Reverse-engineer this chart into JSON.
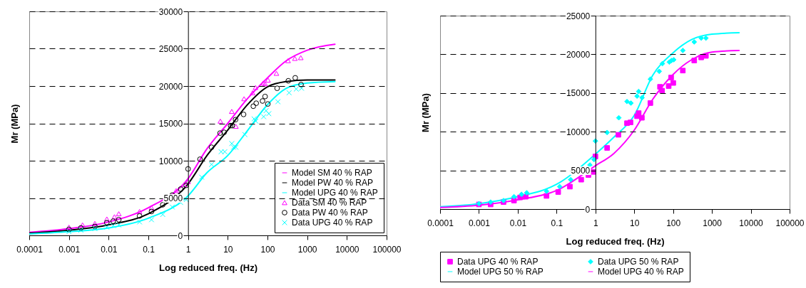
{
  "chart_data": [
    {
      "type": "line",
      "xlabel": "Log reduced freq. (Hz)",
      "ylabel": "Mr (MPa)",
      "log": "x",
      "xlim": [
        0.0001,
        100000
      ],
      "xticks": [
        0.0001,
        0.001,
        0.01,
        0.1,
        1,
        10,
        100,
        1000,
        10000,
        100000
      ],
      "ylim": [
        0,
        30000
      ],
      "yticks": [
        0,
        5000,
        10000,
        15000,
        20000,
        25000,
        30000
      ],
      "grid": "y",
      "legend": "bottom right",
      "series": [
        {
          "name": "Model SM 40 % RAP",
          "type": "line",
          "marker": "none",
          "color": "#ff00ff",
          "x": [
            0.0001,
            0.001,
            0.01,
            0.1,
            1,
            3,
            10,
            30,
            100,
            300,
            1000,
            5000
          ],
          "values": [
            400,
            900,
            1800,
            3700,
            7600,
            11600,
            15000,
            18200,
            21100,
            23400,
            24800,
            25600
          ]
        },
        {
          "name": "Model PW 40 % RAP",
          "type": "line",
          "marker": "none",
          "color": "#000000",
          "x": [
            0.0001,
            0.001,
            0.01,
            0.1,
            1,
            3,
            10,
            30,
            100,
            300,
            1000,
            5000
          ],
          "values": [
            300,
            700,
            1400,
            2900,
            6900,
            10700,
            14100,
            17400,
            19900,
            20600,
            20800,
            20800
          ]
        },
        {
          "name": "Model UPG 40 % RAP",
          "type": "line",
          "marker": "none",
          "color": "#00ffff",
          "x": [
            0.0001,
            0.001,
            0.01,
            0.1,
            1,
            3,
            10,
            30,
            100,
            300,
            1000,
            5000
          ],
          "values": [
            200,
            500,
            1000,
            2300,
            5300,
            8400,
            10700,
            13900,
            17500,
            19700,
            20400,
            20600
          ]
        },
        {
          "name": "Data SM 40 % RAP",
          "type": "scatter",
          "marker": "triangle",
          "color": "#ff00ff",
          "x": [
            0.001,
            0.0022,
            0.0045,
            0.009,
            0.014,
            0.018,
            0.06,
            0.12,
            0.5,
            0.8,
            1,
            6.5,
            12.6,
            16,
            25.7,
            42,
            50,
            78,
            87,
            103,
            168,
            330,
            490,
            690
          ],
          "values": [
            1100,
            1400,
            1600,
            2200,
            2500,
            2900,
            3200,
            3700,
            6000,
            6800,
            7200,
            15300,
            16600,
            14600,
            18300,
            19100,
            19800,
            20400,
            20300,
            20800,
            21700,
            23400,
            23700,
            23800
          ]
        },
        {
          "name": "Data PW 40 % RAP",
          "type": "scatter",
          "marker": "circle",
          "color": "#000000",
          "x": [
            0.001,
            0.002,
            0.0045,
            0.009,
            0.013,
            0.018,
            0.06,
            0.12,
            0.23,
            0.4,
            0.65,
            0.9,
            1,
            2,
            3.9,
            6.4,
            8.1,
            11.8,
            13,
            15.7,
            25,
            44,
            52,
            75,
            87,
            102,
            175,
            335,
            500,
            700
          ],
          "values": [
            800,
            1000,
            1200,
            1700,
            1900,
            2100,
            2600,
            3200,
            4100,
            5400,
            6200,
            6700,
            8900,
            10200,
            11800,
            13700,
            13800,
            14700,
            14700,
            15500,
            16200,
            17300,
            17700,
            18000,
            18600,
            17600,
            19700,
            20700,
            21100,
            20200
          ]
        },
        {
          "name": "Data UPG  40 % RAP",
          "type": "scatter",
          "marker": "cross",
          "color": "#00ffff",
          "x": [
            0.001,
            0.002,
            0.0045,
            0.009,
            0.013,
            0.018,
            0.06,
            0.12,
            0.23,
            0.4,
            0.65,
            0.9,
            2.2,
            3.9,
            6.8,
            8.4,
            12.6,
            14,
            16,
            27,
            46,
            51,
            80,
            92,
            108,
            183,
            350,
            530,
            720
          ],
          "values": [
            500,
            700,
            900,
            1100,
            1300,
            1400,
            1800,
            2100,
            2800,
            3800,
            4400,
            4800,
            7800,
            9500,
            11200,
            11200,
            12300,
            11800,
            11800,
            13500,
            15600,
            15300,
            15900,
            16700,
            16300,
            17900,
            19100,
            19600,
            19700
          ]
        }
      ]
    },
    {
      "type": "line",
      "xlabel": "Log reduced freq. (Hz)",
      "ylabel": "Mr (MPa)",
      "log": "x",
      "xlim": [
        0.0001,
        100000
      ],
      "xticks": [
        0.0001,
        0.001,
        0.01,
        0.1,
        1,
        10,
        100,
        1000,
        10000,
        100000
      ],
      "ylim": [
        0,
        25000
      ],
      "yticks": [
        0,
        5000,
        10000,
        15000,
        20000,
        25000
      ],
      "grid": "y",
      "legend": "bottom",
      "series": [
        {
          "name": "Data UPG 40 % RAP",
          "type": "scatter",
          "marker": "square",
          "color": "#ff00ff",
          "x": [
            0.001,
            0.002,
            0.0043,
            0.008,
            0.0115,
            0.016,
            0.055,
            0.11,
            0.22,
            0.43,
            0.66,
            0.88,
            1,
            2,
            3.9,
            6.5,
            8,
            11.8,
            13,
            15.7,
            26,
            46,
            52,
            77,
            89,
            101,
            178,
            350,
            530,
            700
          ],
          "values": [
            600,
            600,
            900,
            1100,
            1500,
            1600,
            1700,
            2200,
            2900,
            3800,
            4400,
            4800,
            6800,
            7900,
            9600,
            11100,
            11200,
            12000,
            12400,
            11800,
            13700,
            15800,
            15300,
            15900,
            17000,
            16300,
            17900,
            19200,
            19600,
            19800
          ]
        },
        {
          "name": "Data UPG 50 % RAP",
          "type": "scatter",
          "marker": "diamond",
          "color": "#00ffff",
          "x": [
            0.001,
            0.002,
            0.0043,
            0.008,
            0.0125,
            0.017,
            0.055,
            0.12,
            0.23,
            0.72,
            0.92,
            1,
            2,
            4,
            6.5,
            8.2,
            11.8,
            13,
            15.9,
            26,
            44,
            53,
            80,
            91,
            104,
            178,
            350,
            530,
            700
          ],
          "values": [
            700,
            900,
            1100,
            1600,
            1900,
            2100,
            2300,
            2900,
            3800,
            5700,
            6400,
            8800,
            9900,
            11800,
            13900,
            13700,
            14600,
            15200,
            14400,
            16800,
            17800,
            18800,
            19000,
            19200,
            19300,
            20500,
            21600,
            22100,
            22100
          ]
        },
        {
          "name": "Model UPG 50 % RAP",
          "type": "line",
          "marker": "none",
          "color": "#00ffff",
          "x": [
            0.0001,
            0.001,
            0.01,
            0.1,
            1,
            3,
            10,
            30,
            100,
            300,
            1000,
            5000
          ],
          "values": [
            300,
            700,
            1600,
            3200,
            7100,
            9300,
            12100,
            17300,
            20200,
            21900,
            22600,
            22800
          ]
        },
        {
          "name": "Model UPG 40 % RAP",
          "type": "line",
          "marker": "none",
          "color": "#ff00ff",
          "x": [
            0.0001,
            0.001,
            0.01,
            0.1,
            1,
            3,
            10,
            30,
            100,
            300,
            1000,
            5000
          ],
          "values": [
            200,
            500,
            1200,
            2400,
            5600,
            7200,
            10200,
            14200,
            17400,
            19300,
            20300,
            20500
          ]
        }
      ]
    }
  ]
}
